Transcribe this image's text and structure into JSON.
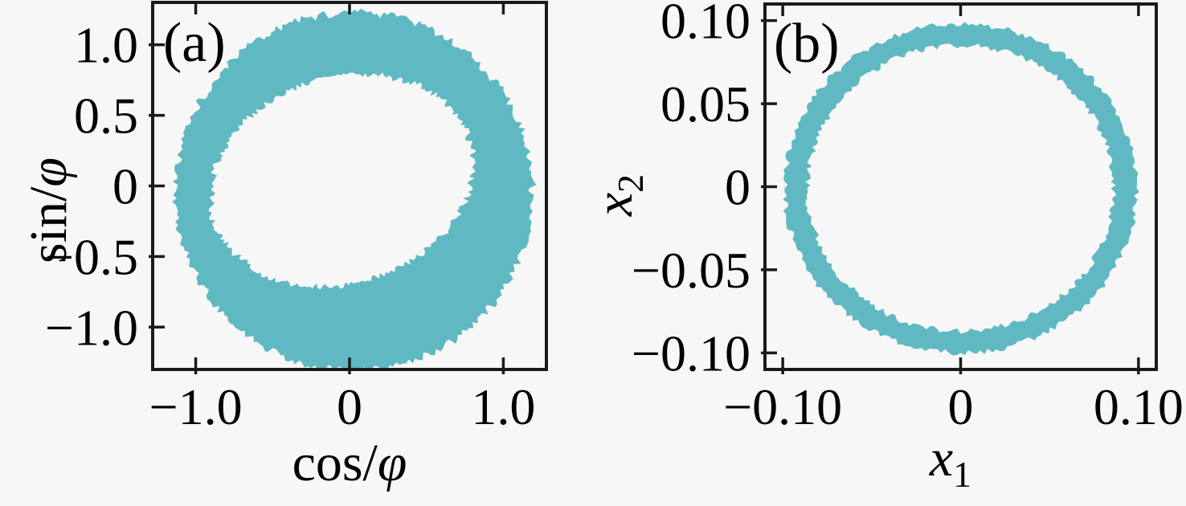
{
  "figure": {
    "background": "#f7f7f7",
    "spine_color": "#1a1a1a",
    "text_color": "#000000",
    "series_color": "#60b9c2"
  },
  "chart_data": [
    {
      "type": "scatter",
      "panel_tag": "(a)",
      "title": "",
      "xlabel": {
        "roman": "cos/",
        "italic": "φ"
      },
      "ylabel": {
        "roman": "sin/",
        "italic": "φ"
      },
      "xlim": [
        -1.28,
        1.28
      ],
      "ylim": [
        -1.3,
        1.3
      ],
      "xticks": [
        {
          "v": -1.0,
          "label": "−1.0"
        },
        {
          "v": 0.0,
          "label": "0"
        },
        {
          "v": 1.0,
          "label": "1.0"
        }
      ],
      "yticks": [
        {
          "v": 1.0,
          "label": "1.0"
        },
        {
          "v": 0.5,
          "label": "0.5"
        },
        {
          "v": 0.0,
          "label": "0"
        },
        {
          "v": -0.5,
          "label": "−0.5"
        },
        {
          "v": -1.0,
          "label": "−1.0"
        }
      ],
      "grid": false,
      "legend": null,
      "series_color": "#60b9c2",
      "data_representation": "dense filled point cloud forming a thick noisy annulus",
      "geometry": {
        "kind": "noisy-annulus",
        "outer_boundary": {
          "cx": 0.03,
          "cy": -0.04,
          "rx": 1.16,
          "ry": 1.27,
          "noise": 0.028
        },
        "inner_hole": {
          "cx": -0.05,
          "cy": 0.04,
          "a": 0.88,
          "b": 0.72,
          "tilt_deg": 25,
          "noise": 0.026
        }
      }
    },
    {
      "type": "scatter",
      "panel_tag": "(b)",
      "title": "",
      "xlabel": {
        "italic": "x",
        "sub": "1"
      },
      "ylabel": {
        "italic": "x",
        "sub": "2"
      },
      "xlim": [
        -0.11,
        0.11
      ],
      "ylim": [
        -0.11,
        0.11
      ],
      "xticks": [
        {
          "v": -0.1,
          "label": "−0.10"
        },
        {
          "v": 0.0,
          "label": "0"
        },
        {
          "v": 0.1,
          "label": "0.10"
        }
      ],
      "yticks": [
        {
          "v": 0.1,
          "label": "0.10"
        },
        {
          "v": 0.05,
          "label": "0.05"
        },
        {
          "v": 0.0,
          "label": "0"
        },
        {
          "v": -0.05,
          "label": "−0.05"
        },
        {
          "v": -0.1,
          "label": "−0.10"
        }
      ],
      "grid": false,
      "legend": null,
      "series_color": "#60b9c2",
      "data_representation": "dense point cloud forming a thin circular ring (limit cycle)",
      "geometry": {
        "kind": "noisy-ring",
        "ring": {
          "cx": 0.0,
          "cy": -0.001,
          "r": 0.0925,
          "half_width": 0.0065,
          "noise": 0.0018
        }
      }
    }
  ]
}
